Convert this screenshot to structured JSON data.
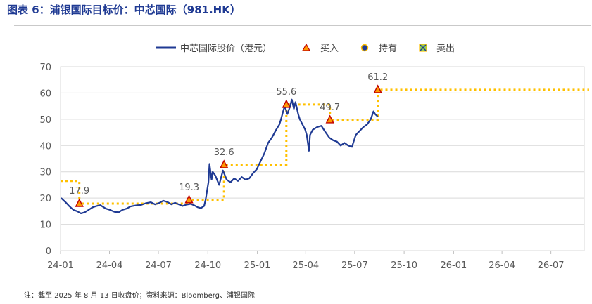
{
  "figure": {
    "title": "图表 6：浦银国际目标价：中芯国际（981.HK）",
    "note": "注：截至 2025 年 8 月 13 日收盘价；资料来源：Bloomberg、浦银国际"
  },
  "colors": {
    "title": "#1f3a93",
    "price": "#1f3a93",
    "target": "#ffc000",
    "buy": "#ff9900",
    "buy_edge": "#c00000",
    "hold": "#1f3a93",
    "sell": "#92d050",
    "grid": "#d9d9d9"
  },
  "chart_data": {
    "type": "line",
    "xlabel": "",
    "ylabel": "",
    "ylim": [
      0,
      70
    ],
    "yticks": [
      0,
      10,
      20,
      30,
      40,
      50,
      60,
      70
    ],
    "x_range": [
      "2024-01",
      "2026-09"
    ],
    "xticks": [
      "24-01",
      "24-04",
      "24-07",
      "24-10",
      "25-01",
      "25-04",
      "25-07",
      "25-10",
      "26-01",
      "26-04",
      "26-07"
    ],
    "grid": true,
    "legend": {
      "placement": "top",
      "entries": [
        {
          "name": "中芯国际股价（港元）",
          "marker": "line"
        },
        {
          "name": "买入",
          "marker": "triangle"
        },
        {
          "name": "持有",
          "marker": "circle"
        },
        {
          "name": "卖出",
          "marker": "square-x"
        }
      ]
    },
    "series": [
      {
        "name": "中芯国际股价（港元）",
        "x": [
          "2024-01-02",
          "2024-01-10",
          "2024-01-17",
          "2024-01-25",
          "2024-02-01",
          "2024-02-08",
          "2024-02-15",
          "2024-02-22",
          "2024-03-01",
          "2024-03-08",
          "2024-03-15",
          "2024-03-25",
          "2024-04-02",
          "2024-04-10",
          "2024-04-18",
          "2024-04-25",
          "2024-05-03",
          "2024-05-10",
          "2024-05-20",
          "2024-05-30",
          "2024-06-07",
          "2024-06-17",
          "2024-06-25",
          "2024-07-03",
          "2024-07-10",
          "2024-07-18",
          "2024-07-25",
          "2024-08-01",
          "2024-08-08",
          "2024-08-15",
          "2024-08-22",
          "2024-08-30",
          "2024-09-06",
          "2024-09-12",
          "2024-09-18",
          "2024-09-24",
          "2024-09-27",
          "2024-10-02",
          "2024-10-04",
          "2024-10-08",
          "2024-10-10",
          "2024-10-15",
          "2024-10-22",
          "2024-10-29",
          "2024-11-05",
          "2024-11-12",
          "2024-11-19",
          "2024-11-26",
          "2024-12-03",
          "2024-12-10",
          "2024-12-17",
          "2024-12-24",
          "2024-12-31",
          "2025-01-07",
          "2025-01-14",
          "2025-01-21",
          "2025-01-28",
          "2025-02-05",
          "2025-02-11",
          "2025-02-14",
          "2025-02-18",
          "2025-02-21",
          "2025-02-26",
          "2025-03-03",
          "2025-03-06",
          "2025-03-10",
          "2025-03-13",
          "2025-03-18",
          "2025-03-21",
          "2025-03-26",
          "2025-03-31",
          "2025-04-03",
          "2025-04-07",
          "2025-04-09",
          "2025-04-14",
          "2025-04-22",
          "2025-04-30",
          "2025-05-08",
          "2025-05-15",
          "2025-05-22",
          "2025-05-29",
          "2025-06-05",
          "2025-06-12",
          "2025-06-19",
          "2025-06-26",
          "2025-07-03",
          "2025-07-10",
          "2025-07-17",
          "2025-07-24",
          "2025-07-31",
          "2025-08-05",
          "2025-08-08",
          "2025-08-13"
        ],
        "values": [
          20.0,
          18.5,
          17.0,
          15.5,
          15.0,
          14.2,
          14.6,
          15.5,
          16.5,
          17.0,
          17.3,
          16.0,
          15.5,
          14.8,
          14.6,
          15.5,
          16.0,
          16.8,
          17.2,
          17.4,
          18.0,
          18.4,
          17.6,
          18.2,
          19.0,
          18.5,
          17.6,
          18.2,
          17.6,
          17.0,
          17.5,
          17.8,
          17.2,
          16.5,
          16.2,
          17.0,
          19.5,
          26.0,
          33.0,
          27.0,
          30.0,
          28.5,
          25.0,
          30.5,
          27.0,
          26.0,
          27.5,
          26.5,
          28.0,
          27.0,
          27.5,
          29.5,
          31.0,
          34.0,
          37.0,
          41.0,
          43.0,
          46.0,
          48.0,
          50.0,
          53.0,
          55.0,
          52.0,
          55.0,
          57.5,
          54.0,
          56.5,
          52.0,
          50.0,
          48.0,
          46.0,
          44.0,
          38.0,
          44.0,
          46.0,
          47.0,
          47.5,
          45.0,
          43.0,
          42.0,
          41.5,
          40.0,
          41.0,
          40.0,
          39.5,
          44.0,
          45.5,
          47.0,
          48.0,
          50.0,
          53.0,
          52.0,
          51.0
        ]
      },
      {
        "name": "目标价",
        "x": [
          "2024-01-01",
          "2024-02-05",
          "2024-02-05",
          "2024-08-27",
          "2024-08-27",
          "2024-10-31",
          "2024-10-31",
          "2025-02-24",
          "2025-02-24",
          "2025-05-16",
          "2025-05-16",
          "2025-08-13",
          "2025-08-13",
          "2026-09-10"
        ],
        "values": [
          26.5,
          26.5,
          17.9,
          17.9,
          19.3,
          19.3,
          32.6,
          32.6,
          55.6,
          55.6,
          49.7,
          49.7,
          61.2,
          61.2
        ]
      }
    ],
    "ratings": [
      {
        "date": "2024-02-05",
        "rating": "买入",
        "target": 17.9,
        "label": "17.9"
      },
      {
        "date": "2024-08-27",
        "rating": "买入",
        "target": 19.3,
        "label": "19.3"
      },
      {
        "date": "2024-10-31",
        "rating": "买入",
        "target": 32.6,
        "label": "32.6"
      },
      {
        "date": "2025-02-24",
        "rating": "买入",
        "target": 55.6,
        "label": "55.6"
      },
      {
        "date": "2025-05-16",
        "rating": "买入",
        "target": 49.7,
        "label": "49.7"
      },
      {
        "date": "2025-08-13",
        "rating": "买入",
        "target": 61.2,
        "label": "61.2"
      }
    ]
  }
}
